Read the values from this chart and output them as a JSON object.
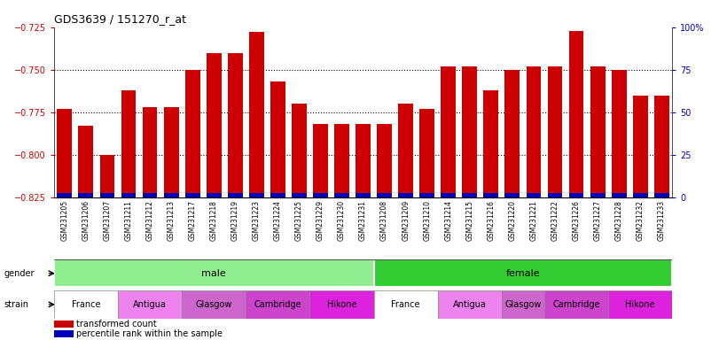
{
  "title": "GDS3639 / 151270_r_at",
  "samples": [
    "GSM231205",
    "GSM231206",
    "GSM231207",
    "GSM231211",
    "GSM231212",
    "GSM231213",
    "GSM231217",
    "GSM231218",
    "GSM231219",
    "GSM231223",
    "GSM231224",
    "GSM231225",
    "GSM231229",
    "GSM231230",
    "GSM231231",
    "GSM231208",
    "GSM231209",
    "GSM231210",
    "GSM231214",
    "GSM231215",
    "GSM231216",
    "GSM231220",
    "GSM231221",
    "GSM231222",
    "GSM231226",
    "GSM231227",
    "GSM231228",
    "GSM231232",
    "GSM231233"
  ],
  "values": [
    -0.773,
    -0.783,
    -0.8,
    -0.762,
    -0.772,
    -0.772,
    -0.75,
    -0.74,
    -0.74,
    -0.728,
    -0.757,
    -0.77,
    -0.782,
    -0.782,
    -0.782,
    -0.782,
    -0.77,
    -0.773,
    -0.748,
    -0.748,
    -0.762,
    -0.75,
    -0.748,
    -0.748,
    -0.727,
    -0.748,
    -0.75,
    -0.765,
    -0.765
  ],
  "ylim_left": [
    -0.825,
    -0.725
  ],
  "ylim_right": [
    0,
    100
  ],
  "yticks_left": [
    -0.825,
    -0.8,
    -0.775,
    -0.75,
    -0.725
  ],
  "yticks_right": [
    0,
    25,
    50,
    75,
    100
  ],
  "bar_color": "#cc0000",
  "percentile_color": "#0000bb",
  "male_color": "#90ee90",
  "female_color": "#33cc33",
  "strain_data": [
    {
      "label": "France",
      "count": 3,
      "color": "#ffffff"
    },
    {
      "label": "Antigua",
      "count": 3,
      "color": "#ee82ee"
    },
    {
      "label": "Glasgow",
      "count": 3,
      "color": "#cc66cc"
    },
    {
      "label": "Cambridge",
      "count": 3,
      "color": "#cc44cc"
    },
    {
      "label": "Hikone",
      "count": 3,
      "color": "#dd22dd"
    }
  ],
  "male_count": 15,
  "female_count": 14,
  "legend_items": [
    "transformed count",
    "percentile rank within the sample"
  ],
  "legend_colors": [
    "#cc0000",
    "#0000bb"
  ],
  "xtick_bg": "#cccccc"
}
